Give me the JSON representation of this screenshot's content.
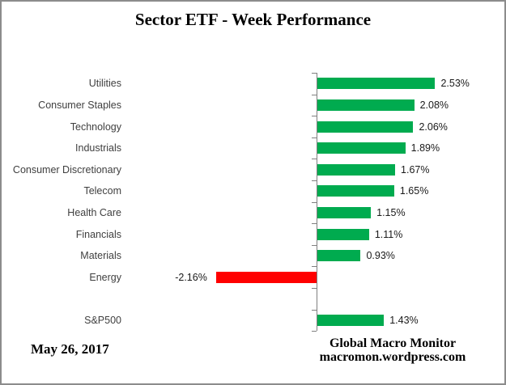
{
  "chart_data": {
    "type": "bar",
    "orientation": "horizontal",
    "title": "Sector ETF - Week Performance",
    "categories": [
      "Utilities",
      "Consumer Staples",
      "Technology",
      "Industrials",
      "Consumer Discretionary",
      "Telecom",
      "Health Care",
      "Financials",
      "Materials",
      "Energy",
      "",
      "S&P500"
    ],
    "values": [
      2.53,
      2.08,
      2.06,
      1.89,
      1.67,
      1.65,
      1.15,
      1.11,
      0.93,
      -2.16,
      null,
      1.43
    ],
    "value_labels": [
      "2.53%",
      "2.08%",
      "2.06%",
      "1.89%",
      "1.67%",
      "1.65%",
      "1.15%",
      "1.11%",
      "0.93%",
      "-2.16%",
      "",
      "1.43%"
    ],
    "layout": {
      "grid": false,
      "legend": false,
      "value_axis_labels": false,
      "category_ticks": true
    }
  },
  "colors": {
    "positive_bar": "#00AB4F",
    "negative_bar": "#FF0000",
    "axis": "#808080"
  },
  "footer": {
    "date": "May 26, 2017",
    "credit_line1": "Global Macro Monitor",
    "credit_line2": "macromon.wordpress.com"
  }
}
